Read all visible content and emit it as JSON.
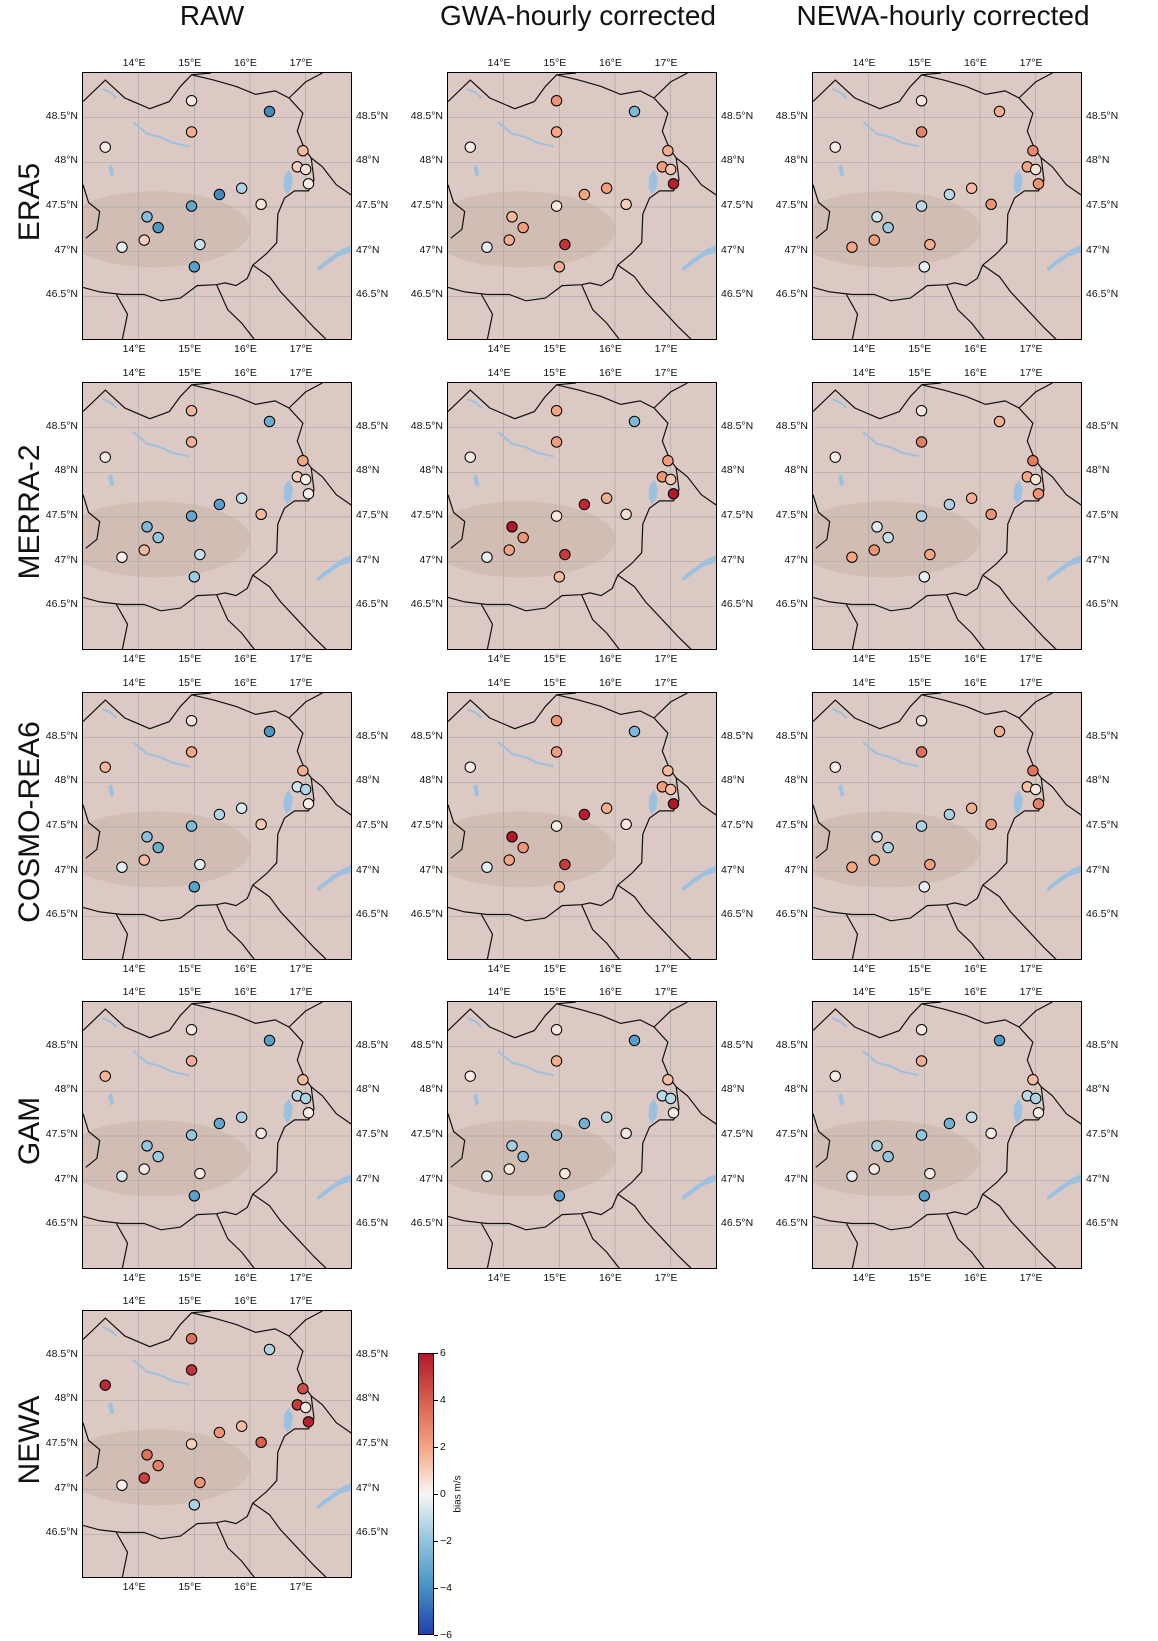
{
  "column_titles": [
    "RAW",
    "GWA-hourly corrected",
    "NEWA-hourly corrected"
  ],
  "row_labels": [
    "ERA5",
    "MERRA-2",
    "COSMO-REA6",
    "GAM",
    "NEWA"
  ],
  "lon_ticks": [
    "14°E",
    "15°E",
    "16°E",
    "17°E"
  ],
  "lat_ticks": [
    "48.5°N",
    "48°N",
    "47.5°N",
    "47°N",
    "46.5°N"
  ],
  "colorbar": {
    "label": "bias m/s",
    "ticks": [
      "6",
      "4",
      "2",
      "0",
      "−2",
      "−4",
      "−6"
    ],
    "range": [
      -6,
      6
    ],
    "colors": [
      "#b2182b",
      "#d6604d",
      "#f4a582",
      "#f7f7f7",
      "#92c5de",
      "#4393c3",
      "#2140b0"
    ]
  },
  "map_colors": {
    "land": "#dcc9c3",
    "water": "#9cc0e0",
    "border": "#111111",
    "grid": "#a8a8a8"
  },
  "stations": [
    {
      "lon": 13.4,
      "lat": 48.17
    },
    {
      "lon": 14.95,
      "lat": 48.69
    },
    {
      "lon": 14.95,
      "lat": 48.34
    },
    {
      "lon": 16.35,
      "lat": 48.57
    },
    {
      "lon": 16.95,
      "lat": 48.13
    },
    {
      "lon": 16.85,
      "lat": 47.95
    },
    {
      "lon": 17.0,
      "lat": 47.92
    },
    {
      "lon": 17.05,
      "lat": 47.76
    },
    {
      "lon": 14.15,
      "lat": 47.39
    },
    {
      "lon": 14.35,
      "lat": 47.27
    },
    {
      "lon": 14.1,
      "lat": 47.13
    },
    {
      "lon": 13.7,
      "lat": 47.05
    },
    {
      "lon": 14.95,
      "lat": 47.51
    },
    {
      "lon": 15.45,
      "lat": 47.64
    },
    {
      "lon": 15.85,
      "lat": 47.71
    },
    {
      "lon": 16.2,
      "lat": 47.53
    },
    {
      "lon": 15.1,
      "lat": 47.08
    },
    {
      "lon": 15.0,
      "lat": 46.83
    }
  ],
  "panels": [
    {
      "row": 0,
      "col": 0,
      "bias": [
        0.3,
        0.4,
        1.8,
        -4.2,
        1.5,
        1.0,
        0.6,
        0.3,
        -2.3,
        -3.8,
        1.0,
        -0.4,
        -3.2,
        -4.2,
        -1.5,
        0.5,
        -0.9,
        -3.5
      ]
    },
    {
      "row": 0,
      "col": 1,
      "bias": [
        0.3,
        2.5,
        2.0,
        -2.5,
        1.8,
        2.2,
        1.2,
        5.8,
        1.5,
        2.2,
        1.8,
        -0.4,
        0.4,
        2.0,
        2.2,
        1.0,
        5.2,
        1.8
      ]
    },
    {
      "row": 0,
      "col": 2,
      "bias": [
        0.3,
        0.4,
        3.0,
        1.8,
        2.8,
        2.0,
        0.5,
        2.5,
        -0.8,
        -1.8,
        2.2,
        2.0,
        -1.2,
        -1.2,
        1.5,
        2.5,
        1.8,
        -0.3
      ]
    },
    {
      "row": 1,
      "col": 0,
      "bias": [
        0.3,
        1.6,
        1.8,
        -3.0,
        2.0,
        1.0,
        0.3,
        0.2,
        -2.5,
        -2.0,
        1.5,
        0.2,
        -3.2,
        -3.5,
        -1.0,
        1.5,
        -1.0,
        -1.8
      ]
    },
    {
      "row": 1,
      "col": 1,
      "bias": [
        0.3,
        2.0,
        2.2,
        -2.5,
        2.2,
        2.5,
        1.2,
        6.0,
        6.0,
        2.5,
        2.0,
        -0.4,
        0.4,
        5.5,
        1.8,
        0.6,
        5.0,
        1.5
      ]
    },
    {
      "row": 1,
      "col": 2,
      "bias": [
        0.3,
        0.4,
        3.2,
        1.8,
        3.2,
        2.0,
        0.5,
        2.5,
        -0.5,
        -1.0,
        2.4,
        2.0,
        -1.5,
        -1.5,
        1.8,
        2.5,
        2.0,
        -0.3
      ]
    },
    {
      "row": 2,
      "col": 0,
      "bias": [
        1.6,
        0.4,
        2.0,
        -3.8,
        1.8,
        -0.8,
        -1.4,
        0.3,
        -2.2,
        -3.0,
        1.5,
        -0.4,
        -2.5,
        -1.4,
        -0.6,
        1.2,
        -0.4,
        -3.5
      ]
    },
    {
      "row": 2,
      "col": 1,
      "bias": [
        0.3,
        2.5,
        2.2,
        -2.5,
        1.5,
        2.2,
        1.4,
        6.0,
        6.0,
        2.4,
        2.0,
        -0.4,
        0.3,
        5.8,
        1.8,
        0.4,
        5.0,
        1.8
      ]
    },
    {
      "row": 2,
      "col": 2,
      "bias": [
        0.3,
        0.4,
        3.5,
        1.8,
        3.4,
        1.4,
        0.4,
        3.0,
        -0.6,
        -1.4,
        2.0,
        2.0,
        -1.5,
        -1.6,
        1.8,
        2.5,
        2.2,
        -0.3
      ]
    },
    {
      "row": 3,
      "col": 0,
      "bias": [
        1.6,
        0.4,
        1.8,
        -3.5,
        1.5,
        -1.2,
        -1.4,
        0.3,
        -2.0,
        -1.8,
        0.3,
        -0.6,
        -2.0,
        -3.2,
        -1.5,
        0.4,
        0.4,
        -3.5
      ]
    },
    {
      "row": 3,
      "col": 1,
      "bias": [
        0.3,
        0.4,
        1.8,
        -3.5,
        1.5,
        -1.2,
        -1.2,
        0.3,
        -1.6,
        -2.4,
        0.4,
        -0.4,
        -2.4,
        -2.8,
        -1.4,
        0.4,
        0.4,
        -3.5
      ]
    },
    {
      "row": 3,
      "col": 2,
      "bias": [
        0.3,
        0.4,
        1.8,
        -3.8,
        1.5,
        -1.2,
        -1.4,
        0.3,
        -1.6,
        -2.0,
        0.3,
        -0.4,
        -2.0,
        -2.8,
        -1.0,
        0.3,
        0.3,
        -3.5
      ]
    },
    {
      "row": 4,
      "col": 0,
      "bias": [
        5.5,
        3.5,
        5.2,
        -1.4,
        4.5,
        5.0,
        0.4,
        5.8,
        3.5,
        3.0,
        4.8,
        0.2,
        1.0,
        2.5,
        1.5,
        4.0,
        2.5,
        -1.5
      ]
    }
  ]
}
